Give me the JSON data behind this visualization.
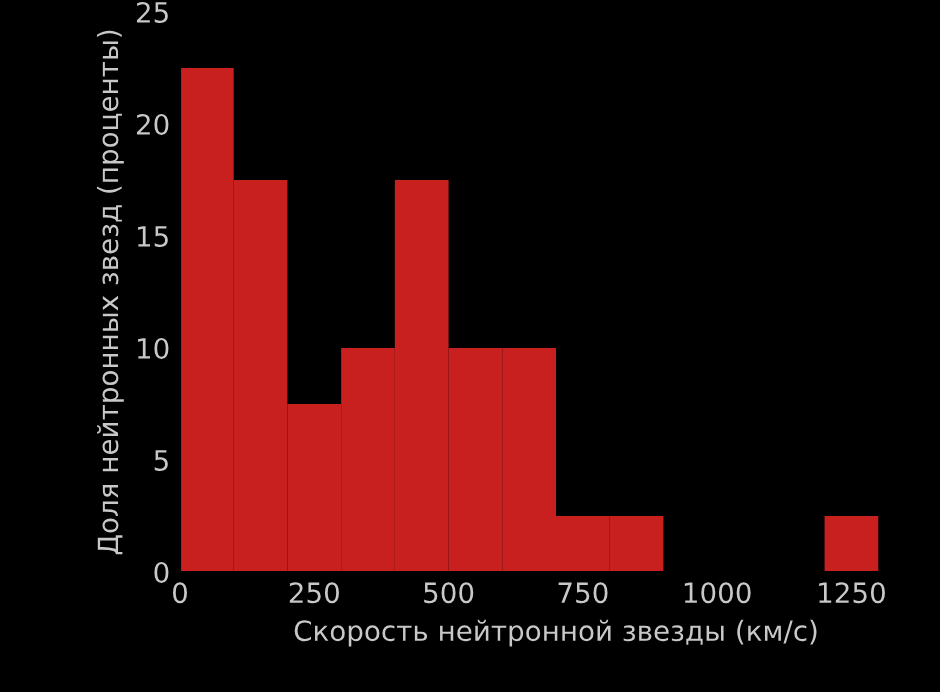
{
  "chart_data": {
    "type": "histogram",
    "xlabel": "Скорость нейтронной звезды (км/с)",
    "ylabel": "Доля нейтронных звезд (проценты)",
    "bins": [
      0,
      100,
      200,
      300,
      400,
      500,
      600,
      700,
      800,
      900,
      1000,
      1100,
      1200,
      1300
    ],
    "values": [
      22.5,
      17.5,
      7.5,
      10,
      17.5,
      10,
      10,
      2.5,
      2.5,
      0,
      0,
      0,
      2.5
    ],
    "color": "#c8201e",
    "xlim": [
      0,
      1400
    ],
    "xticks": [
      0,
      250,
      500,
      750,
      1000,
      1250
    ],
    "ylim": [
      0,
      25
    ],
    "yticks": [
      0,
      5,
      10,
      15,
      20,
      25
    ],
    "grid": false
  }
}
